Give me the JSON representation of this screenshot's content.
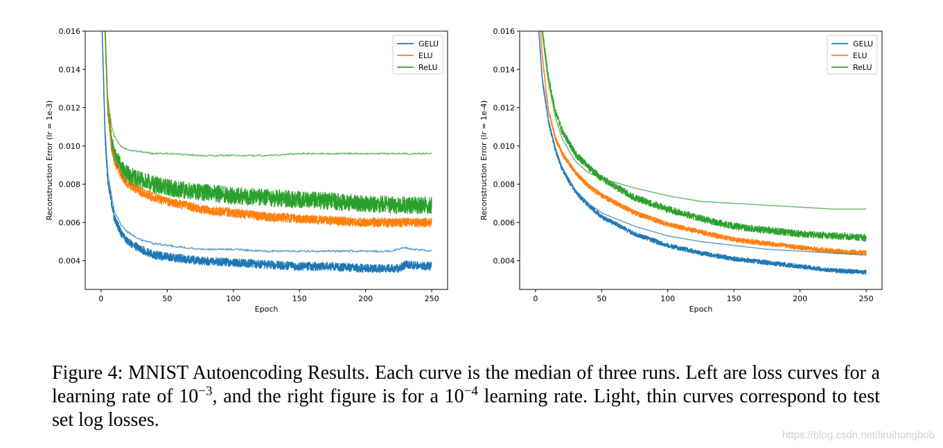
{
  "chart_data": [
    {
      "type": "line",
      "xlabel": "Epoch",
      "ylabel": "Reconstruction Error (lr = 1e-3)",
      "xlim": [
        -12,
        262
      ],
      "ylim": [
        0.0025,
        0.016
      ],
      "xticks": [
        0,
        50,
        100,
        150,
        200,
        250
      ],
      "xtick_labels": [
        "0",
        "50",
        "100",
        "150",
        "200",
        "250"
      ],
      "yticks": [
        0.004,
        0.006,
        0.008,
        0.01,
        0.012,
        0.014,
        0.016
      ],
      "ytick_labels": [
        "0.004",
        "0.006",
        "0.008",
        "0.010",
        "0.012",
        "0.014",
        "0.016"
      ],
      "grid": false,
      "legend": "top-right",
      "series": [
        {
          "name": "GELU",
          "color": "#1f77b4",
          "kind": "train",
          "x": [
            0,
            3,
            5,
            10,
            15,
            20,
            30,
            40,
            50,
            75,
            100,
            125,
            150,
            175,
            200,
            225,
            230,
            250
          ],
          "y": [
            0.018,
            0.0105,
            0.0082,
            0.0062,
            0.0055,
            0.005,
            0.0046,
            0.0043,
            0.0042,
            0.004,
            0.0039,
            0.0038,
            0.0037,
            0.0037,
            0.0036,
            0.0036,
            0.0038,
            0.0037
          ],
          "noise": 0.00022
        },
        {
          "name": "ELU",
          "color": "#ff7f0e",
          "kind": "train",
          "x": [
            2,
            5,
            8,
            10,
            15,
            20,
            30,
            40,
            50,
            75,
            100,
            125,
            150,
            175,
            200,
            225,
            250
          ],
          "y": [
            0.018,
            0.0118,
            0.0098,
            0.0092,
            0.0085,
            0.008,
            0.0076,
            0.0073,
            0.0071,
            0.0067,
            0.0065,
            0.0063,
            0.0062,
            0.0061,
            0.006,
            0.006,
            0.006
          ],
          "noise": 0.00024
        },
        {
          "name": "ReLU",
          "color": "#2ca02c",
          "kind": "train",
          "x": [
            2,
            5,
            8,
            10,
            15,
            20,
            30,
            40,
            50,
            75,
            100,
            125,
            150,
            175,
            200,
            225,
            250
          ],
          "y": [
            0.018,
            0.0122,
            0.0102,
            0.0096,
            0.0089,
            0.0085,
            0.0082,
            0.008,
            0.0078,
            0.0076,
            0.0074,
            0.0073,
            0.0072,
            0.0071,
            0.007,
            0.0069,
            0.0069
          ],
          "noise": 0.00045
        },
        {
          "name": "GELU",
          "color": "#1f77b4",
          "kind": "test",
          "x": [
            0,
            3,
            5,
            10,
            15,
            20,
            30,
            40,
            50,
            75,
            100,
            125,
            150,
            175,
            200,
            220,
            225,
            230,
            235,
            250
          ],
          "y": [
            0.018,
            0.0108,
            0.0086,
            0.0066,
            0.0059,
            0.0055,
            0.0051,
            0.0049,
            0.0048,
            0.0046,
            0.0046,
            0.0045,
            0.0045,
            0.0045,
            0.0045,
            0.0045,
            0.0046,
            0.0047,
            0.0046,
            0.0045
          ],
          "noise": 5e-05
        },
        {
          "name": "ELU",
          "color": "#ff7f0e",
          "kind": "test",
          "x": [
            2,
            5,
            8,
            10,
            15,
            20,
            30,
            40,
            50,
            75,
            100,
            125,
            150,
            175,
            200,
            225,
            250
          ],
          "y": [
            0.018,
            0.012,
            0.01,
            0.0094,
            0.0087,
            0.0082,
            0.0078,
            0.0075,
            0.0072,
            0.0068,
            0.0066,
            0.0064,
            0.0063,
            0.0062,
            0.0061,
            0.0061,
            0.0061
          ],
          "noise": 4e-05
        },
        {
          "name": "ReLU",
          "color": "#2ca02c",
          "kind": "test",
          "x": [
            2,
            5,
            8,
            10,
            15,
            20,
            30,
            40,
            50,
            75,
            100,
            125,
            150,
            175,
            200,
            225,
            250
          ],
          "y": [
            0.018,
            0.0125,
            0.011,
            0.0105,
            0.01,
            0.0098,
            0.0097,
            0.0096,
            0.0096,
            0.0095,
            0.0095,
            0.0095,
            0.0096,
            0.0096,
            0.0096,
            0.0096,
            0.0096
          ],
          "noise": 4e-05
        }
      ]
    },
    {
      "type": "line",
      "xlabel": "Epoch",
      "ylabel": "Reconstruction Error (lr = 1e-4)",
      "xlim": [
        -12,
        262
      ],
      "ylim": [
        0.0025,
        0.016
      ],
      "xticks": [
        0,
        50,
        100,
        150,
        200,
        250
      ],
      "xtick_labels": [
        "0",
        "50",
        "100",
        "150",
        "200",
        "250"
      ],
      "yticks": [
        0.004,
        0.006,
        0.008,
        0.01,
        0.012,
        0.014,
        0.016
      ],
      "ytick_labels": [
        "0.004",
        "0.006",
        "0.008",
        "0.010",
        "0.012",
        "0.014",
        "0.016"
      ],
      "grid": false,
      "legend": "top-right",
      "series": [
        {
          "name": "GELU",
          "color": "#1f77b4",
          "kind": "train",
          "x": [
            0,
            3,
            5,
            10,
            15,
            20,
            30,
            40,
            50,
            75,
            100,
            125,
            150,
            175,
            200,
            225,
            250
          ],
          "y": [
            0.018,
            0.0155,
            0.0135,
            0.0112,
            0.0098,
            0.0088,
            0.0076,
            0.0069,
            0.0063,
            0.0054,
            0.0048,
            0.0044,
            0.0041,
            0.0039,
            0.0037,
            0.0035,
            0.0034
          ],
          "noise": 0.00012
        },
        {
          "name": "ELU",
          "color": "#ff7f0e",
          "kind": "train",
          "x": [
            2,
            5,
            8,
            10,
            15,
            20,
            30,
            40,
            50,
            75,
            100,
            125,
            150,
            175,
            200,
            225,
            250
          ],
          "y": [
            0.018,
            0.0148,
            0.0128,
            0.0118,
            0.0104,
            0.0096,
            0.0086,
            0.0079,
            0.0074,
            0.0065,
            0.0059,
            0.0055,
            0.0051,
            0.0049,
            0.0047,
            0.0045,
            0.0044
          ],
          "noise": 0.00013
        },
        {
          "name": "ReLU",
          "color": "#2ca02c",
          "kind": "train",
          "x": [
            2,
            5,
            8,
            10,
            15,
            20,
            30,
            40,
            50,
            75,
            100,
            125,
            150,
            175,
            200,
            225,
            250
          ],
          "y": [
            0.018,
            0.0162,
            0.0145,
            0.0135,
            0.0118,
            0.0108,
            0.0096,
            0.0089,
            0.0083,
            0.0073,
            0.0067,
            0.0062,
            0.0058,
            0.0056,
            0.0054,
            0.0053,
            0.0052
          ],
          "noise": 0.00018
        },
        {
          "name": "GELU",
          "color": "#1f77b4",
          "kind": "test",
          "x": [
            0,
            3,
            5,
            10,
            15,
            20,
            30,
            40,
            50,
            75,
            100,
            125,
            150,
            175,
            200,
            225,
            250
          ],
          "y": [
            0.018,
            0.0155,
            0.0136,
            0.0113,
            0.0099,
            0.0089,
            0.0077,
            0.007,
            0.0065,
            0.0058,
            0.0053,
            0.005,
            0.0048,
            0.0046,
            0.0045,
            0.0044,
            0.0043
          ],
          "noise": 0
        },
        {
          "name": "ELU",
          "color": "#ff7f0e",
          "kind": "test",
          "x": [
            2,
            5,
            8,
            10,
            15,
            20,
            30,
            40,
            50,
            75,
            100,
            125,
            150,
            175,
            200,
            225,
            250
          ],
          "y": [
            0.018,
            0.0148,
            0.0129,
            0.0118,
            0.0105,
            0.0097,
            0.0087,
            0.008,
            0.0075,
            0.0066,
            0.006,
            0.0055,
            0.0052,
            0.0049,
            0.0047,
            0.0045,
            0.0044
          ],
          "noise": 0
        },
        {
          "name": "ReLU",
          "color": "#2ca02c",
          "kind": "test",
          "x": [
            2,
            5,
            8,
            10,
            15,
            20,
            30,
            40,
            50,
            75,
            100,
            125,
            150,
            175,
            200,
            225,
            250
          ],
          "y": [
            0.018,
            0.016,
            0.0142,
            0.0132,
            0.0115,
            0.0104,
            0.0092,
            0.0086,
            0.0083,
            0.0078,
            0.0074,
            0.0071,
            0.007,
            0.0069,
            0.0068,
            0.0067,
            0.0067
          ],
          "noise": 0
        }
      ]
    }
  ],
  "caption": {
    "part1": "Figure 4:  MNIST Autoencoding Results.  Each curve is the median of three runs.  Left are loss curves for a learning rate of 10",
    "exp1": "−3",
    "part2": ", and the right figure is for a 10",
    "exp2": "−4",
    "part3": " learning rate. Light, thin curves correspond to test set log losses."
  },
  "watermark": "https://blog.csdn.net/liruihongbob"
}
